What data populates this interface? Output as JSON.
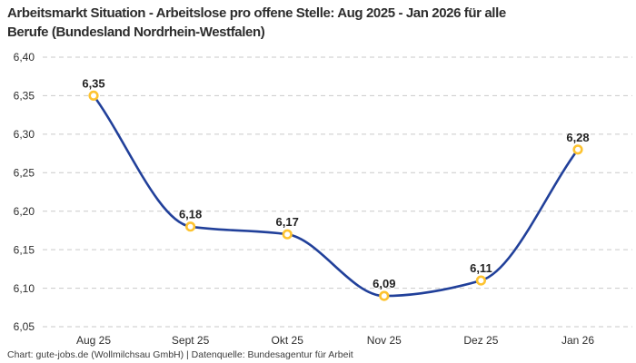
{
  "header": {
    "title_line1": "Arbeitsmarkt Situation - Arbeitslose pro offene Stelle: Aug 2025 - Jan 2026 für alle",
    "title_line2": "Berufe (Bundesland Nordrhein-Westfalen)"
  },
  "footer": {
    "credit": "Chart: gute-jobs.de (Wollmilchsau GmbH) | Datenquelle: Bundesagentur für Arbeit"
  },
  "colors": {
    "background": "#ffffff",
    "line": "#21409a",
    "marker_ring": "#fdc330",
    "marker_fill": "#ffffff",
    "grid": "#c9c9c9",
    "title_text": "#2d2d2d",
    "axis_text": "#2e2e2e",
    "point_label_text": "#222222",
    "footer_text": "#3c3c3c"
  },
  "chart_data": {
    "type": "line",
    "title": "Arbeitsmarkt Situation - Arbeitslose pro offene Stelle: Aug 2025 - Jan 2026 für alle Berufe (Bundesland Nordrhein-Westfalen)",
    "categories": [
      "Aug 25",
      "Sept 25",
      "Okt 25",
      "Nov 25",
      "Dez 25",
      "Jan 26"
    ],
    "values": [
      6.35,
      6.18,
      6.17,
      6.09,
      6.11,
      6.28
    ],
    "point_labels": [
      "6,35",
      "6,18",
      "6,17",
      "6,09",
      "6,11",
      "6,28"
    ],
    "xlabel": "",
    "ylabel": "",
    "ylim": [
      6.05,
      6.4
    ],
    "y_ticks": [
      6.4,
      6.35,
      6.3,
      6.25,
      6.2,
      6.15,
      6.1,
      6.05
    ],
    "y_tick_labels": [
      "6,40",
      "6,35",
      "6,30",
      "6,25",
      "6,20",
      "6,15",
      "6,10",
      "6,05"
    ],
    "grid": "horizontal-dashed",
    "curve": "monotone",
    "legend": "none"
  }
}
